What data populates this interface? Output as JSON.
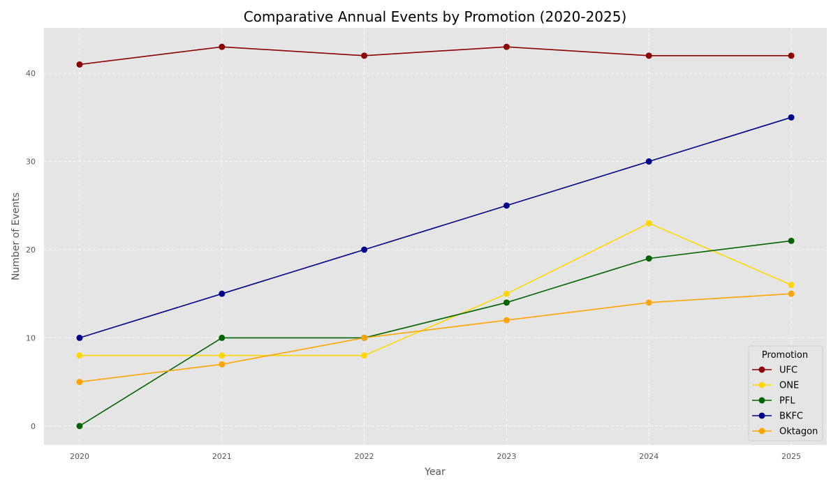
{
  "chart_data": {
    "type": "line",
    "title": "Comparative Annual Events by Promotion (2020-2025)",
    "xlabel": "Year",
    "ylabel": "Number of Events",
    "x": [
      2020,
      2021,
      2022,
      2023,
      2024,
      2025
    ],
    "xlim": [
      2019.75,
      2025.25
    ],
    "ylim": [
      -2.15,
      45.15
    ],
    "yticks": [
      0,
      10,
      20,
      30,
      40
    ],
    "grid": true,
    "legend": {
      "title": "Promotion",
      "placement": "bottom-right"
    },
    "background": "#e5e5e5",
    "series": [
      {
        "name": "UFC",
        "color": "#8b0000",
        "values": [
          41,
          43,
          42,
          43,
          42,
          42
        ]
      },
      {
        "name": "ONE",
        "color": "#ffd700",
        "values": [
          8,
          8,
          8,
          15,
          23,
          16
        ]
      },
      {
        "name": "PFL",
        "color": "#006400",
        "values": [
          0,
          10,
          10,
          14,
          19,
          21
        ]
      },
      {
        "name": "BKFC",
        "color": "#00008b",
        "values": [
          10,
          15,
          20,
          25,
          30,
          35
        ]
      },
      {
        "name": "Oktagon",
        "color": "#ffa500",
        "values": [
          5,
          7,
          10,
          12,
          14,
          15
        ]
      }
    ]
  }
}
